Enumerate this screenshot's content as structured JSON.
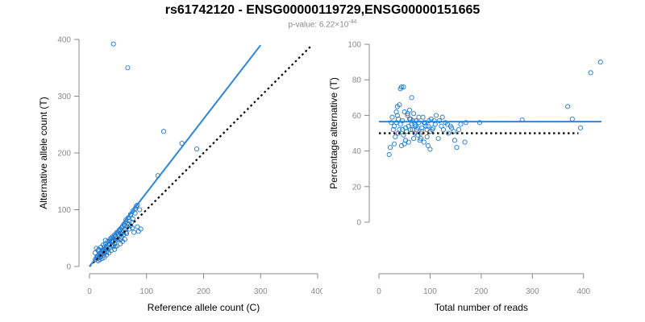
{
  "page": {
    "title": "rs61742120 - ENSG00000119729,ENSG00000151665",
    "subtitle_prefix": "p-value: 6.22×10",
    "subtitle_exponent": "-44"
  },
  "colors": {
    "point": "#1f77c9",
    "fit_line": "#2b86d9",
    "axis": "#888888",
    "reference_line": "#000000",
    "tick_text": "#888888",
    "label_text": "#000000"
  },
  "chart_data": [
    {
      "type": "scatter",
      "xlabel": "Reference allele count (C)",
      "ylabel": "Alternative allele count (T)",
      "xlim": [
        0,
        400
      ],
      "ylim": [
        0,
        400
      ],
      "xticks": [
        0,
        100,
        200,
        300,
        400
      ],
      "yticks": [
        0,
        100,
        200,
        300,
        400
      ],
      "fit_line": {
        "x": [
          0,
          300
        ],
        "y": [
          0,
          390
        ]
      },
      "reference_line": {
        "x": [
          0,
          390
        ],
        "y": [
          0,
          390
        ]
      },
      "points": [
        [
          42,
          392
        ],
        [
          67,
          350
        ],
        [
          130,
          238
        ],
        [
          162,
          217
        ],
        [
          188,
          207
        ],
        [
          120,
          160
        ],
        [
          82,
          106
        ],
        [
          88,
          100
        ],
        [
          72,
          90
        ],
        [
          76,
          84
        ],
        [
          80,
          94
        ],
        [
          70,
          80
        ],
        [
          66,
          76
        ],
        [
          62,
          72
        ],
        [
          58,
          70
        ],
        [
          54,
          66
        ],
        [
          63,
          78
        ],
        [
          68,
          74
        ],
        [
          60,
          62
        ],
        [
          56,
          58
        ],
        [
          50,
          56
        ],
        [
          52,
          62
        ],
        [
          46,
          52
        ],
        [
          44,
          48
        ],
        [
          40,
          44
        ],
        [
          38,
          50
        ],
        [
          35,
          44
        ],
        [
          34,
          38
        ],
        [
          30,
          36
        ],
        [
          28,
          40
        ],
        [
          26,
          34
        ],
        [
          24,
          30
        ],
        [
          22,
          28
        ],
        [
          20,
          24
        ],
        [
          18,
          22
        ],
        [
          16,
          20
        ],
        [
          14,
          18
        ],
        [
          12,
          16
        ],
        [
          10,
          12
        ],
        [
          14,
          14
        ],
        [
          18,
          16
        ],
        [
          20,
          18
        ],
        [
          22,
          22
        ],
        [
          24,
          26
        ],
        [
          26,
          24
        ],
        [
          28,
          30
        ],
        [
          30,
          32
        ],
        [
          32,
          34
        ],
        [
          36,
          40
        ],
        [
          40,
          38
        ],
        [
          42,
          44
        ],
        [
          44,
          40
        ],
        [
          46,
          46
        ],
        [
          48,
          50
        ],
        [
          50,
          48
        ],
        [
          52,
          54
        ],
        [
          54,
          58
        ],
        [
          56,
          52
        ],
        [
          58,
          60
        ],
        [
          60,
          56
        ],
        [
          62,
          66
        ],
        [
          64,
          60
        ],
        [
          66,
          70
        ],
        [
          70,
          66
        ],
        [
          72,
          72
        ],
        [
          74,
          78
        ],
        [
          84,
          70
        ],
        [
          90,
          66
        ],
        [
          86,
          62
        ],
        [
          78,
          60
        ],
        [
          62,
          48
        ],
        [
          58,
          44
        ],
        [
          54,
          40
        ],
        [
          48,
          36
        ],
        [
          44,
          30
        ],
        [
          38,
          28
        ],
        [
          34,
          24
        ],
        [
          30,
          20
        ],
        [
          26,
          16
        ],
        [
          22,
          14
        ],
        [
          18,
          12
        ],
        [
          15,
          28
        ],
        [
          12,
          32
        ],
        [
          10,
          24
        ],
        [
          16,
          30
        ],
        [
          20,
          34
        ],
        [
          24,
          38
        ],
        [
          28,
          46
        ],
        [
          32,
          44
        ],
        [
          36,
          48
        ],
        [
          40,
          52
        ],
        [
          44,
          56
        ],
        [
          48,
          60
        ],
        [
          52,
          64
        ],
        [
          56,
          68
        ],
        [
          60,
          74
        ],
        [
          64,
          82
        ],
        [
          68,
          86
        ],
        [
          72,
          92
        ],
        [
          76,
          98
        ],
        [
          80,
          102
        ],
        [
          84,
          108
        ],
        [
          45,
          35
        ],
        [
          35,
          32
        ],
        [
          25,
          20
        ],
        [
          15,
          10
        ],
        [
          55,
          48
        ],
        [
          65,
          58
        ],
        [
          75,
          68
        ],
        [
          30,
          26
        ],
        [
          42,
          36
        ]
      ]
    },
    {
      "type": "scatter",
      "xlabel": "Total number of reads",
      "ylabel": "Percentage alternative (T)",
      "xlim": [
        0,
        435
      ],
      "ylim": [
        0,
        100
      ],
      "xticks": [
        0,
        100,
        200,
        300,
        400
      ],
      "yticks": [
        0,
        20,
        40,
        60,
        80,
        100
      ],
      "fit_line": {
        "x": [
          0,
          435
        ],
        "y": [
          56.5,
          56.5
        ]
      },
      "reference_line": {
        "x": [
          0,
          390
        ],
        "y": [
          50,
          50
        ]
      },
      "points": [
        [
          433,
          90
        ],
        [
          414,
          84
        ],
        [
          369,
          65
        ],
        [
          378,
          58
        ],
        [
          394,
          53
        ],
        [
          280,
          57.5
        ],
        [
          197,
          56
        ],
        [
          170,
          56
        ],
        [
          168,
          45
        ],
        [
          148,
          46
        ],
        [
          152,
          42
        ],
        [
          156,
          52
        ],
        [
          160,
          55
        ],
        [
          140,
          54
        ],
        [
          136,
          50
        ],
        [
          130,
          56
        ],
        [
          126,
          52
        ],
        [
          122,
          54
        ],
        [
          116,
          47
        ],
        [
          112,
          60
        ],
        [
          108,
          57
        ],
        [
          104,
          52
        ],
        [
          100,
          41
        ],
        [
          98,
          57
        ],
        [
          96,
          43
        ],
        [
          94,
          52
        ],
        [
          92,
          54
        ],
        [
          88,
          56
        ],
        [
          86,
          59
        ],
        [
          84,
          51
        ],
        [
          82,
          50
        ],
        [
          80,
          46
        ],
        [
          78,
          56
        ],
        [
          76,
          53
        ],
        [
          74,
          52
        ],
        [
          72,
          54
        ],
        [
          70,
          50
        ],
        [
          68,
          47
        ],
        [
          66,
          52
        ],
        [
          64,
          55
        ],
        [
          62,
          58
        ],
        [
          60,
          63
        ],
        [
          58,
          45
        ],
        [
          56,
          60
        ],
        [
          54,
          51
        ],
        [
          52,
          53
        ],
        [
          50,
          44
        ],
        [
          48,
          49
        ],
        [
          46,
          57
        ],
        [
          44,
          43
        ],
        [
          42,
          55
        ],
        [
          40,
          52
        ],
        [
          38,
          58
        ],
        [
          36,
          60
        ],
        [
          34,
          62
        ],
        [
          32,
          48
        ],
        [
          30,
          44
        ],
        [
          28,
          52
        ],
        [
          26,
          59
        ],
        [
          24,
          56
        ],
        [
          22,
          42
        ],
        [
          20,
          38
        ],
        [
          44,
          76
        ],
        [
          42,
          75
        ],
        [
          48,
          76
        ],
        [
          64,
          70
        ],
        [
          36,
          65
        ],
        [
          40,
          66
        ],
        [
          50,
          62
        ],
        [
          56,
          61
        ],
        [
          60,
          58
        ],
        [
          66,
          57
        ],
        [
          70,
          55
        ],
        [
          76,
          49
        ],
        [
          82,
          47
        ],
        [
          88,
          45
        ],
        [
          94,
          48
        ],
        [
          100,
          51
        ],
        [
          106,
          53
        ],
        [
          110,
          55
        ],
        [
          118,
          57
        ],
        [
          124,
          59
        ],
        [
          134,
          55
        ],
        [
          142,
          53
        ],
        [
          146,
          51
        ],
        [
          30,
          54
        ],
        [
          34,
          56
        ],
        [
          38,
          50
        ],
        [
          46,
          52
        ],
        [
          52,
          46
        ],
        [
          58,
          54
        ],
        [
          62,
          52
        ],
        [
          68,
          61
        ],
        [
          72,
          57
        ],
        [
          78,
          59
        ],
        [
          84,
          53
        ],
        [
          90,
          56
        ],
        [
          96,
          54
        ],
        [
          102,
          58
        ]
      ]
    }
  ]
}
